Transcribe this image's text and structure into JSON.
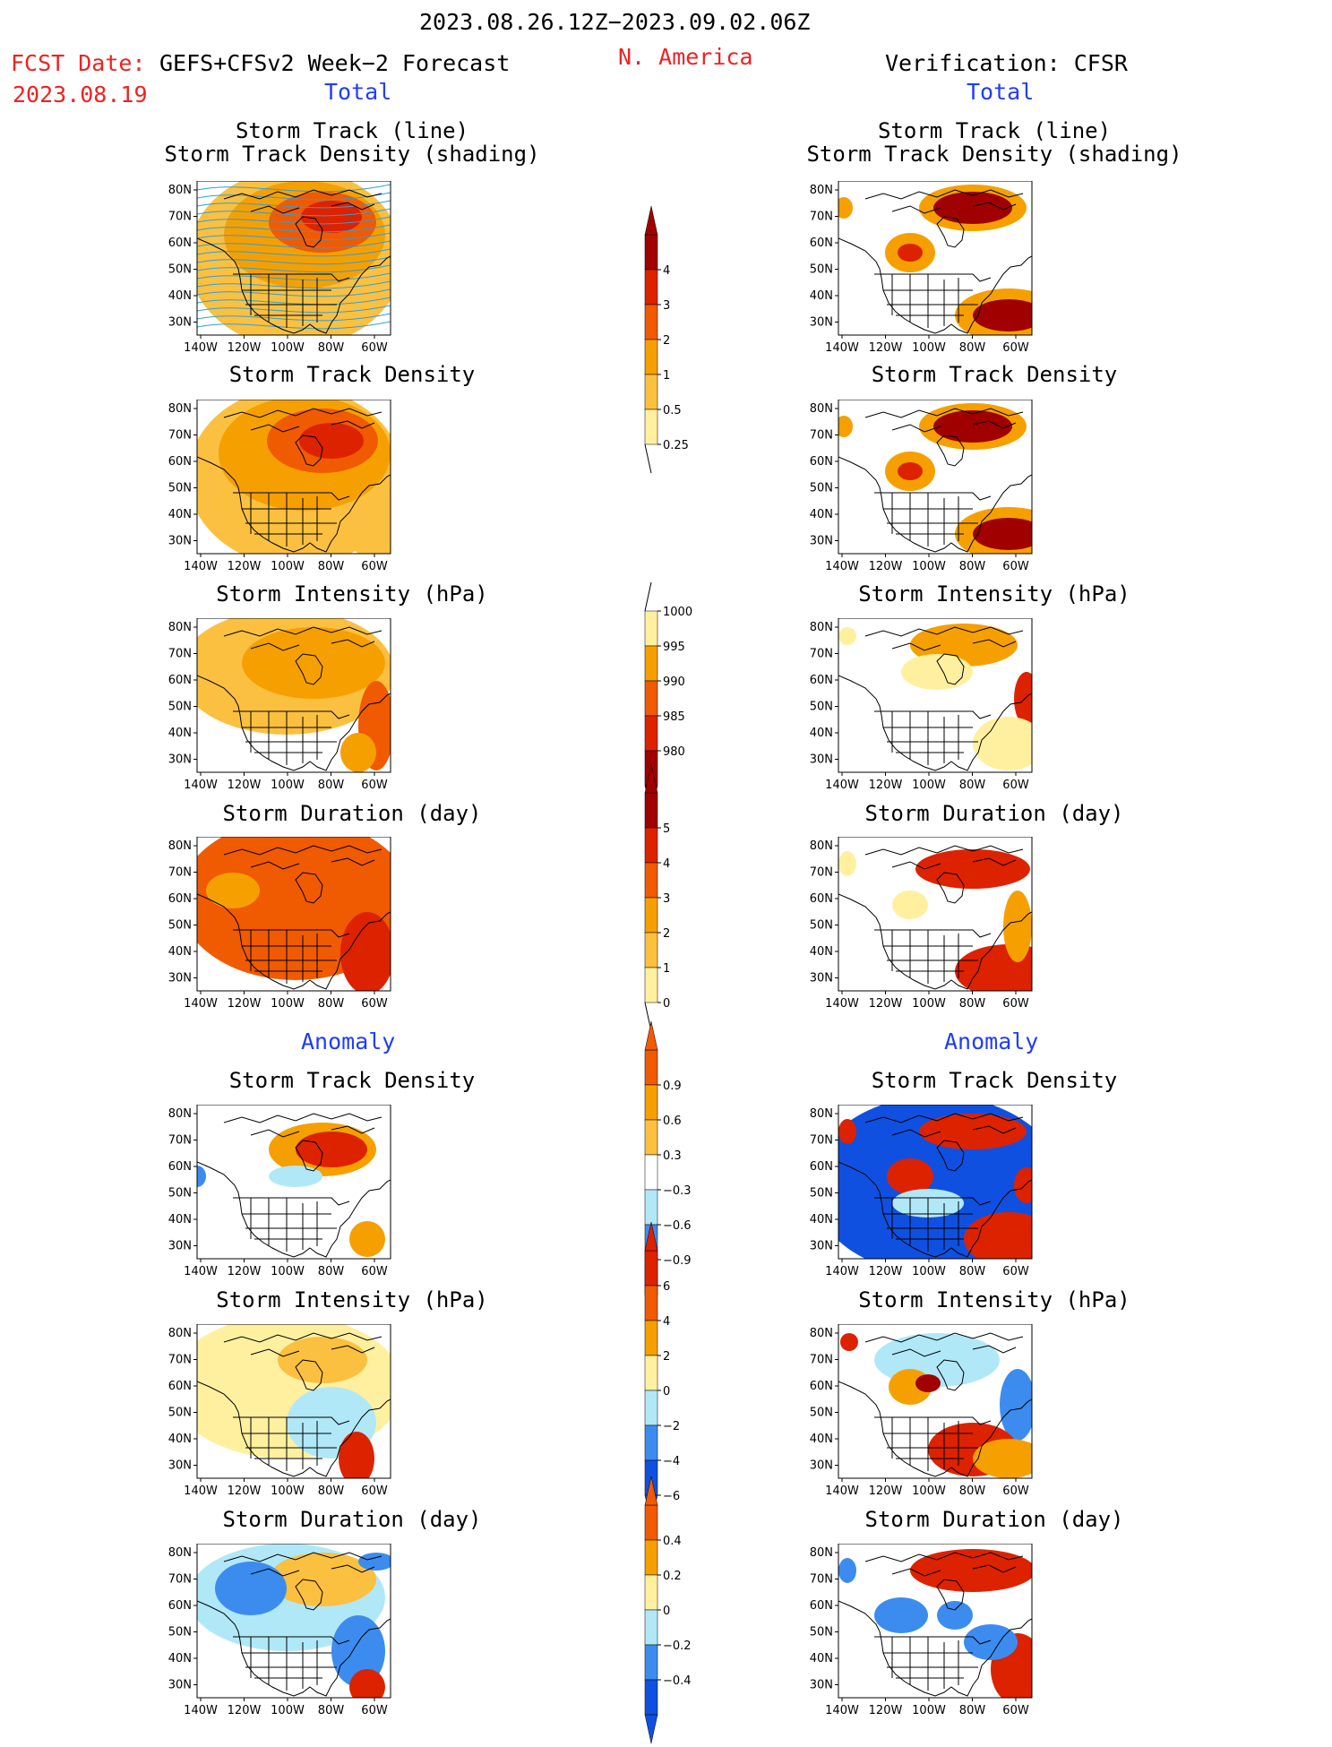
{
  "header": {
    "date_range": "2023.08.26.12Z−2023.09.02.06Z",
    "fcst_label": "FCST Date:",
    "fcst_model": "GEFS+CFSv2 Week−2 Forecast",
    "fcst_date": "2023.08.19",
    "region": "N. America",
    "verification": "Verification: CFSR",
    "total_left": "Total",
    "total_right": "Total",
    "anomaly_left": "Anomaly",
    "anomaly_right": "Anomaly"
  },
  "axes": {
    "lat_labels": [
      "80N",
      "70N",
      "60N",
      "50N",
      "40N",
      "30N"
    ],
    "lon_labels": [
      "140W",
      "120W",
      "100W",
      "80W",
      "60W"
    ]
  },
  "panels": {
    "p1_title_a": "Storm Track (line)",
    "p1_title_b": "Storm Track Density (shading)",
    "density": "Storm Track Density",
    "intensity": "Storm Intensity (hPa)",
    "duration": "Storm Duration (day)"
  },
  "colorbars": {
    "density_total": [
      "4",
      "3",
      "2",
      "1",
      "0.5",
      "0.25"
    ],
    "intensity_total": [
      "1000",
      "995",
      "990",
      "985",
      "980"
    ],
    "duration_total": [
      "5",
      "4",
      "3",
      "2",
      "1",
      "0"
    ],
    "density_anom": [
      "0.9",
      "0.6",
      "0.3",
      "−0.3",
      "−0.6",
      "−0.9"
    ],
    "intensity_anom": [
      "6",
      "4",
      "2",
      "0",
      "−2",
      "−4",
      "−6"
    ],
    "duration_anom": [
      "0.4",
      "0.2",
      "0",
      "−0.2",
      "−0.4"
    ]
  },
  "colors": {
    "dark_red": "#a00000",
    "red": "#dd2200",
    "orange_red": "#f05a00",
    "orange": "#f5a000",
    "light_orange": "#fbc040",
    "yellow": "#fff0a0",
    "light_blue": "#b0e8f8",
    "blue": "#3c8cf0",
    "dark_blue": "#1050e0",
    "track_line": "#2aa0e0"
  }
}
